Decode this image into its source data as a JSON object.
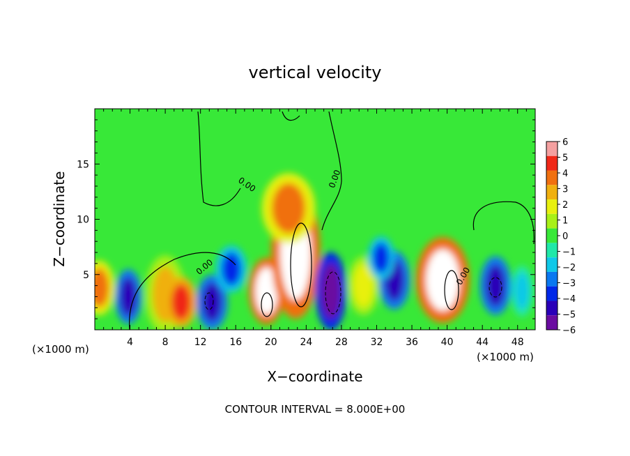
{
  "chart_data": {
    "type": "heatmap",
    "title": "vertical velocity",
    "xlabel": "X−coordinate",
    "ylabel": "Z−coordinate",
    "x_unit_left": "(×1000 m)",
    "x_unit_right": "(×1000 m)",
    "footer": "CONTOUR INTERVAL = 8.000E+00",
    "xlim": [
      0,
      50
    ],
    "ylim": [
      0,
      20
    ],
    "x_ticks": [
      4,
      8,
      12,
      16,
      20,
      24,
      28,
      32,
      36,
      40,
      44,
      48
    ],
    "x_tick_labels": [
      "4",
      "8",
      "12",
      "16",
      "20",
      "24",
      "28",
      "32",
      "36",
      "40",
      "44",
      "48"
    ],
    "y_ticks": [
      5,
      10,
      15
    ],
    "y_tick_labels": [
      "5",
      "10",
      "15"
    ],
    "contour_label": "0.00",
    "colorbar": {
      "levels": [
        -6,
        -5,
        -4,
        -3,
        -2,
        -1,
        0,
        1,
        2,
        3,
        4,
        5,
        6
      ],
      "labels": [
        "6",
        "5",
        "4",
        "3",
        "2",
        "1",
        "0",
        "−1",
        "−2",
        "−3",
        "−4",
        "−5",
        "−6"
      ],
      "colors": [
        "#6a0ca0",
        "#2a00b8",
        "#0028e8",
        "#0a78f0",
        "#10c8e8",
        "#20e8a8",
        "#38e838",
        "#a8f018",
        "#e8f010",
        "#f0b010",
        "#f07010",
        "#f02818",
        "#f4a0a0"
      ]
    },
    "background_value": 0,
    "features": [
      {
        "x": 0.5,
        "z": 3.8,
        "value": 4
      },
      {
        "x": 3.8,
        "z": 3.0,
        "value": -5
      },
      {
        "x": 8.0,
        "z": 3.2,
        "value": 3
      },
      {
        "x": 9.8,
        "z": 2.5,
        "value": 5
      },
      {
        "x": 13.3,
        "z": 2.5,
        "value": -5
      },
      {
        "x": 15.5,
        "z": 5.5,
        "value": -4
      },
      {
        "x": 19.5,
        "z": 3.5,
        "value": 6
      },
      {
        "x": 22.8,
        "z": 7.0,
        "value": 6
      },
      {
        "x": 22.0,
        "z": 11.0,
        "value": 4
      },
      {
        "x": 26.8,
        "z": 3.5,
        "value": -6
      },
      {
        "x": 30.5,
        "z": 4.0,
        "value": 2
      },
      {
        "x": 34.0,
        "z": 4.5,
        "value": -5
      },
      {
        "x": 32.5,
        "z": 6.5,
        "value": -4
      },
      {
        "x": 39.5,
        "z": 4.5,
        "value": 6
      },
      {
        "x": 45.5,
        "z": 4.0,
        "value": -5
      },
      {
        "x": 48.5,
        "z": 3.5,
        "value": -2
      }
    ]
  }
}
